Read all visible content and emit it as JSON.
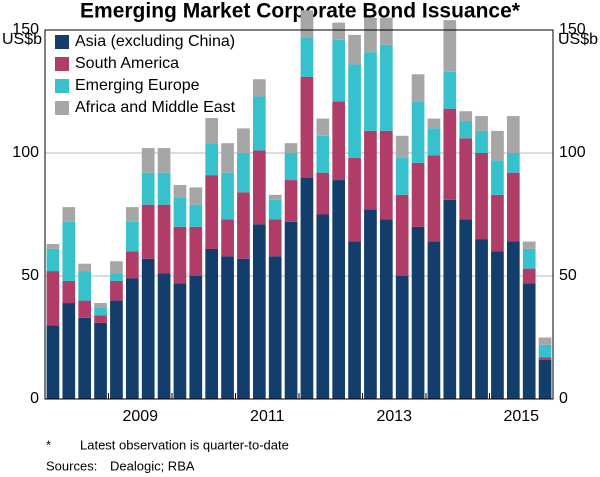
{
  "chart_data": {
    "type": "stacked_bar",
    "title": "Emerging Market Corporate Bond Issuance*",
    "y_unit": "US$b",
    "categories": [
      null,
      null,
      null,
      null,
      null,
      null,
      null,
      null,
      null,
      null,
      null,
      null,
      null,
      null,
      null,
      null,
      null,
      null,
      null,
      null,
      null,
      null,
      null,
      null,
      null,
      null,
      null,
      null,
      null,
      null,
      null,
      null
    ],
    "xlim": [
      2008,
      2016
    ],
    "xticks": [
      2009,
      2011,
      2013,
      2015
    ],
    "ylim": [
      0,
      150
    ],
    "yticks": [
      0,
      50,
      100,
      150
    ],
    "y2lim": [
      0,
      150
    ],
    "y2ticks": [
      0,
      50,
      100,
      150
    ],
    "grid": true,
    "legend": "top-left",
    "series": [
      {
        "name": "Asia (excluding China)",
        "color": "#133d6b",
        "values": [
          30,
          39,
          33,
          31,
          40,
          49,
          57,
          51,
          47,
          50,
          61,
          58,
          57,
          71,
          58,
          72,
          90,
          75,
          89,
          64,
          77,
          73,
          50,
          70,
          64,
          81,
          73,
          65,
          60,
          64,
          47,
          16
        ]
      },
      {
        "name": "South America",
        "color": "#b03c68",
        "values": [
          22,
          9,
          7,
          3,
          8,
          11,
          22,
          28,
          23,
          20,
          30,
          15,
          27,
          30,
          15,
          17,
          41,
          17,
          32,
          34,
          32,
          36,
          33,
          26,
          35,
          37,
          33,
          35,
          23,
          28,
          6,
          1
        ]
      },
      {
        "name": "Emerging Europe",
        "color": "#36c1cc",
        "values": [
          9,
          24,
          12,
          3,
          3,
          12,
          13,
          13,
          12,
          9,
          13,
          19,
          16,
          22,
          8,
          11,
          16,
          15,
          25,
          38,
          32,
          35,
          15,
          25,
          11,
          15,
          7,
          9,
          14,
          8,
          8,
          5
        ]
      },
      {
        "name": "Africa and Middle East",
        "color": "#a6a6a6",
        "values": [
          2,
          6,
          3,
          2,
          5,
          6,
          10,
          10,
          5,
          7,
          13,
          12,
          10,
          7,
          2,
          4,
          11,
          7,
          7,
          12,
          14,
          11,
          9,
          11,
          4,
          21,
          4,
          6,
          12,
          15,
          3,
          3
        ]
      }
    ],
    "notes": [
      {
        "marker": "*",
        "text": "Latest observation is quarter-to-date"
      }
    ],
    "sources_label": "Sources:",
    "sources": "Dealogic; RBA"
  }
}
